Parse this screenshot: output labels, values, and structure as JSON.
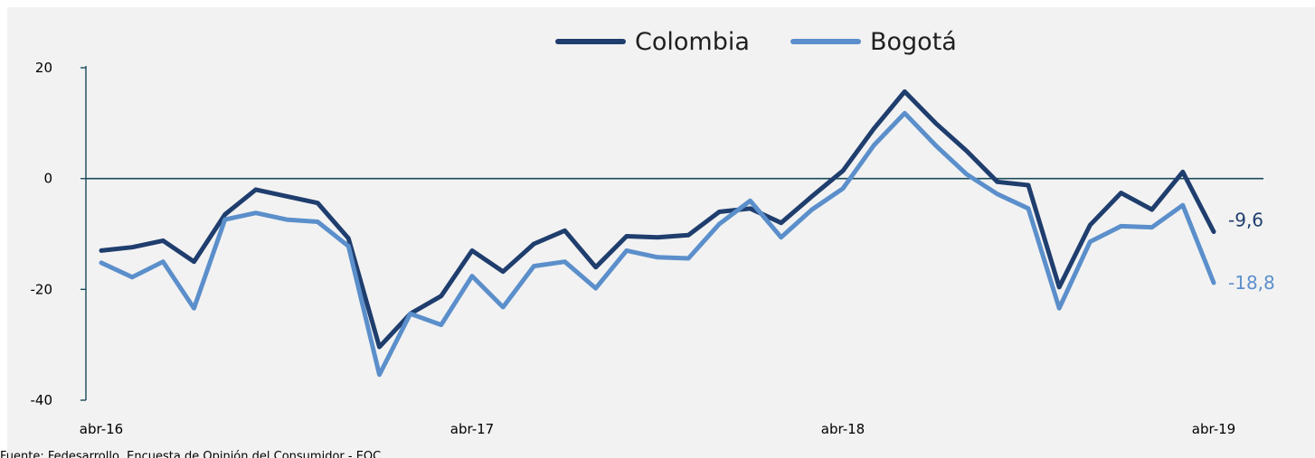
{
  "chart_data": {
    "type": "line",
    "title": "",
    "xlabel": "",
    "ylabel": "",
    "ylim": [
      -40,
      20
    ],
    "yticks": [
      20,
      0,
      -20,
      -40
    ],
    "ytick_labels": [
      "20",
      "0",
      "-20",
      "-40"
    ],
    "x_tick_labels": [
      {
        "index": 0,
        "label": "abr-16"
      },
      {
        "index": 12,
        "label": "abr-17"
      },
      {
        "index": 24,
        "label": "abr-18"
      },
      {
        "index": 36,
        "label": "abr-19"
      }
    ],
    "grid": false,
    "zero_line": true,
    "legend_position": "top-center",
    "series": [
      {
        "name": "Colombia",
        "color": "#1f3e6e",
        "end_label": "-9,6",
        "values": [
          -13.0,
          -12.4,
          -11.2,
          -15.0,
          -6.5,
          -2.0,
          -3.2,
          -4.4,
          -10.8,
          -30.4,
          -24.4,
          -21.2,
          -13.0,
          -16.8,
          -11.8,
          -9.4,
          -16.0,
          -10.4,
          -10.6,
          -10.2,
          -6.0,
          -5.4,
          -8.0,
          -3.2,
          1.4,
          9.0,
          15.7,
          10.0,
          5.0,
          -0.6,
          -1.2,
          -19.6,
          -8.4,
          -2.6,
          -5.6,
          1.2,
          -9.6
        ]
      },
      {
        "name": "Bogotá",
        "color": "#5b8fcb",
        "end_label": "-18,8",
        "values": [
          -15.2,
          -17.8,
          -15.0,
          -23.4,
          -7.4,
          -6.2,
          -7.4,
          -7.8,
          -12.2,
          -35.4,
          -24.4,
          -26.4,
          -17.6,
          -23.2,
          -15.8,
          -15.0,
          -19.8,
          -13.0,
          -14.2,
          -14.4,
          -8.2,
          -4.0,
          -10.6,
          -5.6,
          -1.8,
          6.0,
          11.8,
          6.0,
          0.8,
          -2.8,
          -5.4,
          -23.4,
          -11.4,
          -8.6,
          -8.8,
          -4.8,
          -18.8
        ]
      }
    ]
  },
  "source_text": "Fuente: Fedesarrollo, Encuesta de Opinión del Consumidor - EOC."
}
